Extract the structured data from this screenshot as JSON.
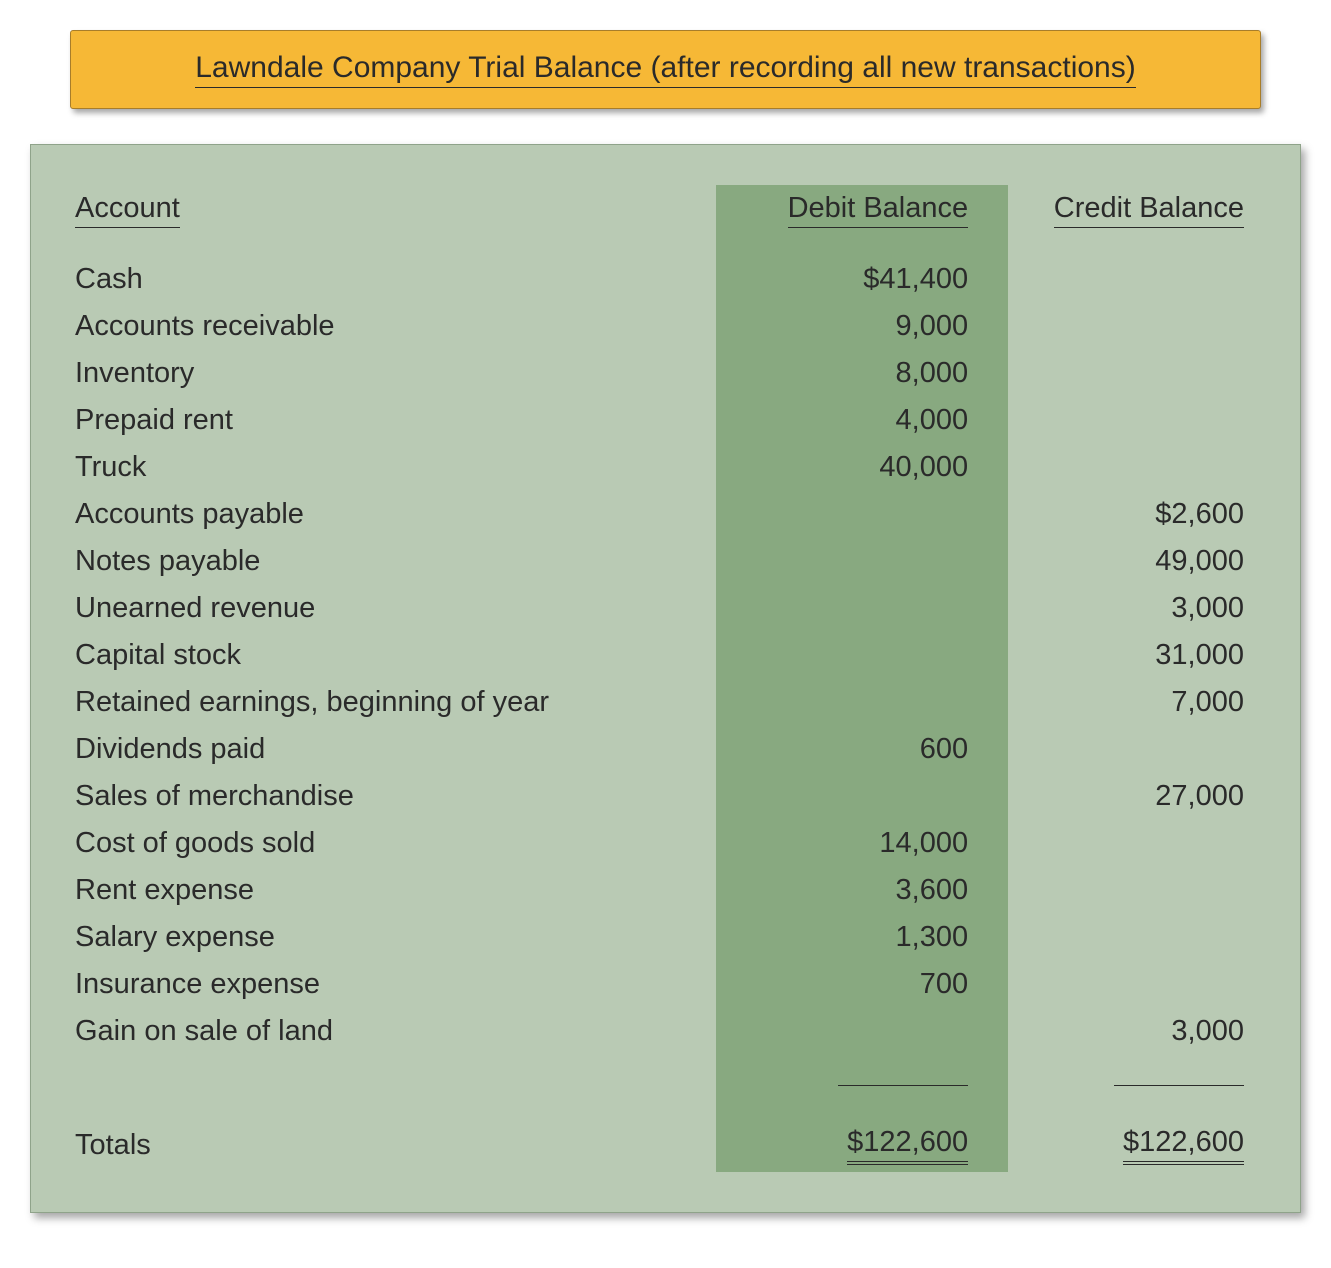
{
  "title": "Lawndale Company Trial Balance (after recording all new transactions)",
  "columns": {
    "account": "Account",
    "debit": "Debit Balance",
    "credit": "Credit Balance"
  },
  "rows": [
    {
      "account": "Cash",
      "debit": "$41,400",
      "credit": ""
    },
    {
      "account": "Accounts receivable",
      "debit": "9,000",
      "credit": ""
    },
    {
      "account": "Inventory",
      "debit": "8,000",
      "credit": ""
    },
    {
      "account": "Prepaid rent",
      "debit": "4,000",
      "credit": ""
    },
    {
      "account": "Truck",
      "debit": "40,000",
      "credit": ""
    },
    {
      "account": "Accounts payable",
      "debit": "",
      "credit": "$2,600"
    },
    {
      "account": "Notes payable",
      "debit": "",
      "credit": "49,000"
    },
    {
      "account": "Unearned revenue",
      "debit": "",
      "credit": "3,000"
    },
    {
      "account": "Capital stock",
      "debit": "",
      "credit": "31,000"
    },
    {
      "account": "Retained earnings, beginning of year",
      "debit": "",
      "credit": "7,000"
    },
    {
      "account": "Dividends paid",
      "debit": "600",
      "credit": ""
    },
    {
      "account": "Sales of merchandise",
      "debit": "",
      "credit": "27,000"
    },
    {
      "account": "Cost of goods sold",
      "debit": "14,000",
      "credit": ""
    },
    {
      "account": "Rent expense",
      "debit": "3,600",
      "credit": ""
    },
    {
      "account": "Salary expense",
      "debit": "1,300",
      "credit": ""
    },
    {
      "account": "Insurance expense",
      "debit": "700",
      "credit": ""
    },
    {
      "account": "Gain on sale of land",
      "debit": "",
      "credit": "3,000"
    }
  ],
  "totals": {
    "label": "Totals",
    "debit": "$122,600",
    "credit": "$122,600"
  },
  "style": {
    "title_bg": "#f6b836",
    "table_bg": "#b9cab4",
    "debit_col_bg": "#88a980",
    "text_color": "#2a2a2a",
    "font_size_body": 29,
    "font_size_title": 30
  }
}
